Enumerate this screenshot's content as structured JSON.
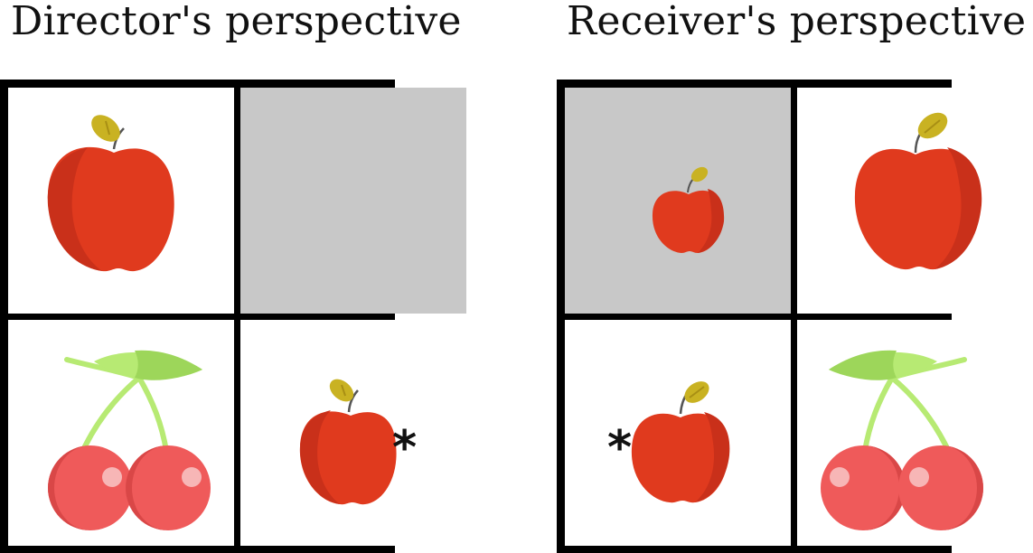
{
  "panels": {
    "director": {
      "title": "Director's perspective"
    },
    "receiver": {
      "title": "Receiver's perspective"
    }
  },
  "grid": {
    "director": [
      {
        "item": "apple-large",
        "background": "white"
      },
      {
        "item": "none",
        "background": "gray"
      },
      {
        "item": "cherries",
        "background": "white"
      },
      {
        "item": "apple-small",
        "background": "white",
        "marked": true
      }
    ],
    "receiver": [
      {
        "item": "apple-tiny",
        "background": "gray"
      },
      {
        "item": "apple-large",
        "background": "white"
      },
      {
        "item": "apple-small",
        "background": "white",
        "marked": true
      },
      {
        "item": "cherries",
        "background": "white"
      }
    ]
  },
  "marker": "*",
  "colors": {
    "grid_border": "#000000",
    "blocked_cell": "#c8c8c8",
    "apple_red": "#e03a1e",
    "apple_shade": "#c9301a",
    "leaf": "#c9b222",
    "cherry": "#ef5a5a",
    "cherry_shade": "#d94747",
    "cherry_stem": "#b7ea73"
  }
}
